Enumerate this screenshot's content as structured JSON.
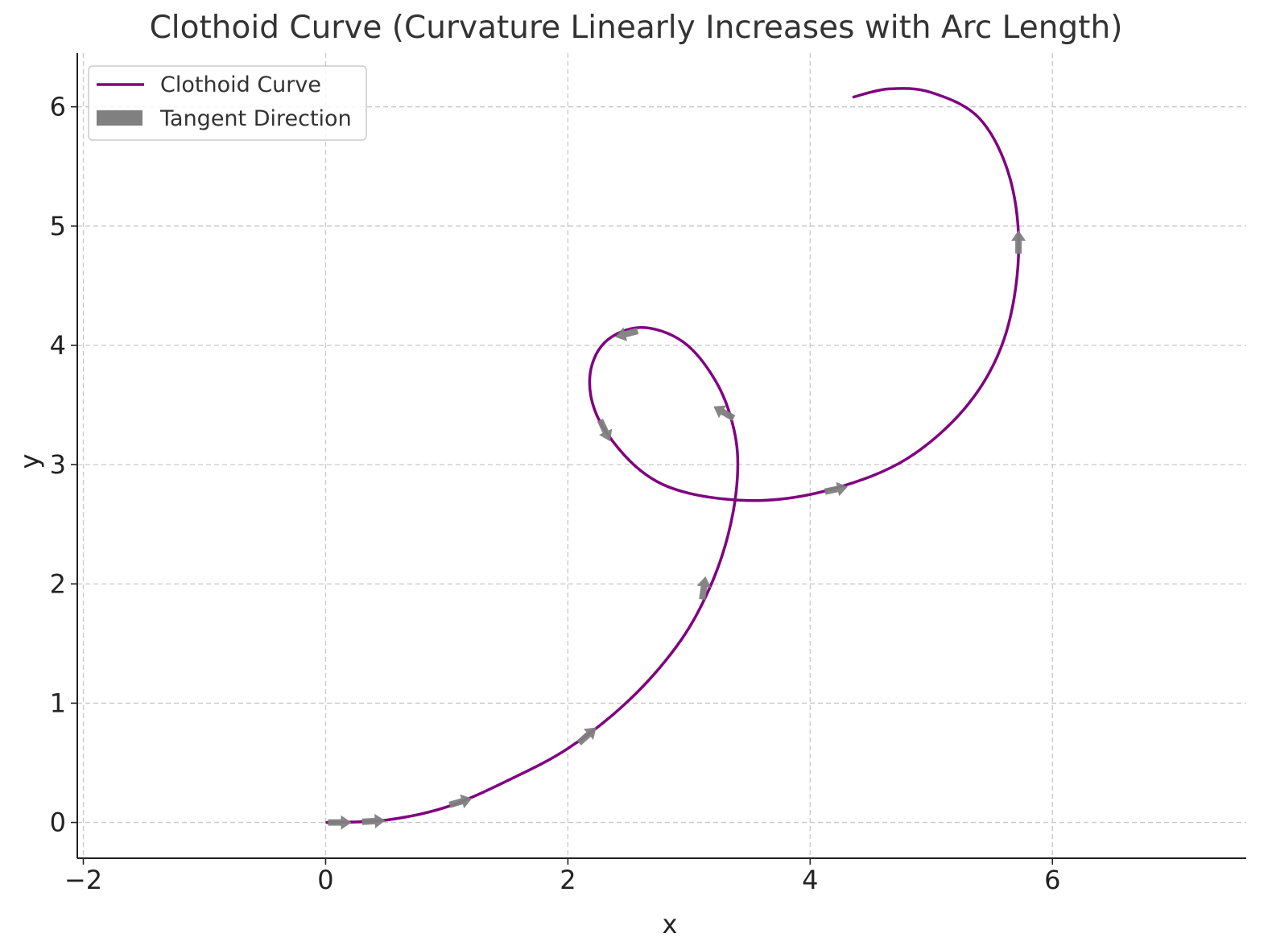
{
  "chart_data": {
    "type": "line",
    "title": "Clothoid Curve (Curvature Linearly Increases with Arc Length)",
    "xlabel": "x",
    "ylabel": "y",
    "xlim": [
      -2.05,
      7.6
    ],
    "ylim": [
      -0.3,
      6.45
    ],
    "x_ticks": [
      -2,
      0,
      2,
      4,
      6
    ],
    "x_tick_labels": [
      "−2",
      "0",
      "2",
      "4",
      "6"
    ],
    "y_ticks": [
      0,
      1,
      2,
      3,
      4,
      5,
      6
    ],
    "y_tick_labels": [
      "0",
      "1",
      "2",
      "3",
      "4",
      "5",
      "6"
    ],
    "grid": true,
    "grid_style": "dashed",
    "legend_position": "upper-left",
    "series": [
      {
        "name": "Clothoid Curve",
        "color": "#800080",
        "points": [
          [
            0.0,
            0.0
          ],
          [
            0.5,
            0.02
          ],
          [
            1.0,
            0.13
          ],
          [
            1.5,
            0.35
          ],
          [
            2.0,
            0.62
          ],
          [
            2.5,
            1.02
          ],
          [
            2.9,
            1.48
          ],
          [
            3.15,
            1.92
          ],
          [
            3.32,
            2.4
          ],
          [
            3.4,
            2.9
          ],
          [
            3.37,
            3.3
          ],
          [
            3.22,
            3.7
          ],
          [
            2.95,
            4.03
          ],
          [
            2.6,
            4.15
          ],
          [
            2.3,
            4.02
          ],
          [
            2.18,
            3.72
          ],
          [
            2.27,
            3.35
          ],
          [
            2.6,
            2.95
          ],
          [
            3.0,
            2.76
          ],
          [
            3.6,
            2.7
          ],
          [
            4.2,
            2.8
          ],
          [
            4.8,
            3.05
          ],
          [
            5.3,
            3.5
          ],
          [
            5.6,
            4.05
          ],
          [
            5.72,
            4.75
          ],
          [
            5.65,
            5.4
          ],
          [
            5.4,
            5.9
          ],
          [
            5.0,
            6.12
          ],
          [
            4.65,
            6.15
          ],
          [
            4.35,
            6.08
          ]
        ]
      },
      {
        "name": "Tangent Direction",
        "color": "#808080",
        "arrows": [
          {
            "x": 0.1,
            "y": 0.0,
            "angle_deg": 0
          },
          {
            "x": 0.38,
            "y": 0.01,
            "angle_deg": 3
          },
          {
            "x": 1.1,
            "y": 0.17,
            "angle_deg": 16
          },
          {
            "x": 2.15,
            "y": 0.72,
            "angle_deg": 42
          },
          {
            "x": 3.12,
            "y": 1.95,
            "angle_deg": 82
          },
          {
            "x": 3.3,
            "y": 3.43,
            "angle_deg": 150
          },
          {
            "x": 2.5,
            "y": 4.1,
            "angle_deg": 195
          },
          {
            "x": 2.3,
            "y": 3.3,
            "angle_deg": 295
          },
          {
            "x": 4.2,
            "y": 2.79,
            "angle_deg": 12
          },
          {
            "x": 5.72,
            "y": 4.85,
            "angle_deg": 90
          }
        ]
      }
    ]
  }
}
